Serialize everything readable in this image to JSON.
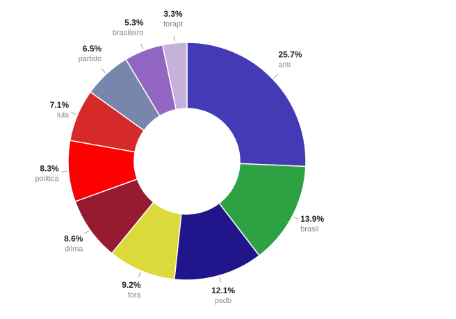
{
  "chart_data": {
    "type": "pie",
    "variant": "donut",
    "start": "top, clockwise",
    "slices": [
      {
        "label": "anti",
        "percent_label": "25.7%",
        "value": 25.7,
        "color": "#443AB5"
      },
      {
        "label": "brasil",
        "percent_label": "13.9%",
        "value": 13.9,
        "color": "#2EA242"
      },
      {
        "label": "psdb",
        "percent_label": "12.1%",
        "value": 12.1,
        "color": "#21158C"
      },
      {
        "label": "fora",
        "percent_label": "9.2%",
        "value": 9.2,
        "color": "#DCD93A"
      },
      {
        "label": "dilma",
        "percent_label": "8.6%",
        "value": 8.6,
        "color": "#961B31"
      },
      {
        "label": "politica",
        "percent_label": "8.3%",
        "value": 8.3,
        "color": "#FF0000"
      },
      {
        "label": "lula",
        "percent_label": "7.1%",
        "value": 7.1,
        "color": "#D52A29"
      },
      {
        "label": "partido",
        "percent_label": "6.5%",
        "value": 6.5,
        "color": "#7886AB"
      },
      {
        "label": "brasileiro",
        "percent_label": "5.3%",
        "value": 5.3,
        "color": "#9466C4"
      },
      {
        "label": "forapt",
        "percent_label": "3.3%",
        "value": 3.3,
        "color": "#C6B1DA"
      }
    ]
  }
}
